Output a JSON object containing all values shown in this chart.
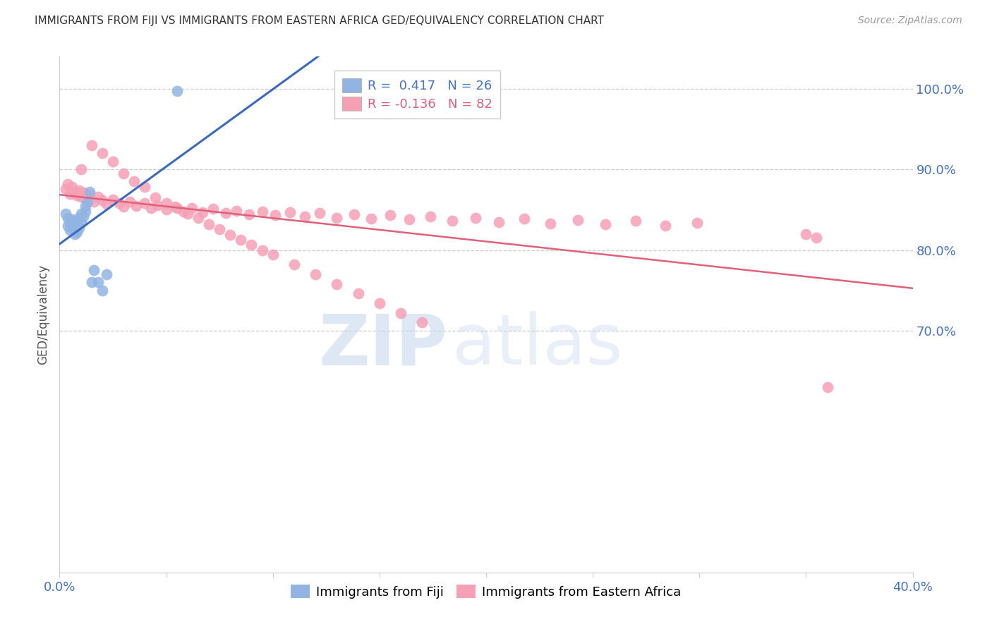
{
  "title": "IMMIGRANTS FROM FIJI VS IMMIGRANTS FROM EASTERN AFRICA GED/EQUIVALENCY CORRELATION CHART",
  "source": "Source: ZipAtlas.com",
  "ylabel": "GED/Equivalency",
  "xlim": [
    0.0,
    0.4
  ],
  "ylim": [
    0.4,
    1.04
  ],
  "x_ticks": [
    0.0,
    0.05,
    0.1,
    0.15,
    0.2,
    0.25,
    0.3,
    0.35,
    0.4
  ],
  "x_tick_labels": [
    "0.0%",
    "",
    "",
    "",
    "",
    "",
    "",
    "",
    "40.0%"
  ],
  "y_ticks_right": [
    1.0,
    0.9,
    0.8,
    0.7
  ],
  "y_tick_labels_right": [
    "100.0%",
    "90.0%",
    "80.0%",
    "70.0%"
  ],
  "fiji_color": "#92b4e3",
  "fiji_color_line": "#3a6abf",
  "ea_color": "#f5a0b5",
  "ea_color_line": "#e0607a",
  "title_color": "#333333",
  "axis_label_color": "#555555",
  "tick_label_color": "#4472c4",
  "right_tick_color": "#4472c4",
  "grid_color": "#cccccc",
  "background_color": "#ffffff",
  "fiji_N": 26,
  "ea_N": 82,
  "fiji_R": 0.417,
  "ea_R": -0.136,
  "fiji_scatter_x": [
    0.003,
    0.004,
    0.004,
    0.005,
    0.005,
    0.006,
    0.006,
    0.007,
    0.007,
    0.008,
    0.008,
    0.009,
    0.009,
    0.01,
    0.01,
    0.011,
    0.012,
    0.012,
    0.013,
    0.014,
    0.015,
    0.016,
    0.018,
    0.02,
    0.022,
    0.055
  ],
  "fiji_scatter_y": [
    0.845,
    0.84,
    0.83,
    0.835,
    0.825,
    0.838,
    0.828,
    0.832,
    0.82,
    0.836,
    0.822,
    0.84,
    0.828,
    0.845,
    0.835,
    0.842,
    0.855,
    0.848,
    0.86,
    0.872,
    0.76,
    0.775,
    0.76,
    0.75,
    0.77,
    0.997
  ],
  "ea_scatter_x": [
    0.003,
    0.004,
    0.005,
    0.006,
    0.007,
    0.008,
    0.009,
    0.01,
    0.011,
    0.012,
    0.014,
    0.016,
    0.018,
    0.02,
    0.022,
    0.025,
    0.028,
    0.03,
    0.033,
    0.036,
    0.04,
    0.043,
    0.046,
    0.05,
    0.054,
    0.058,
    0.062,
    0.067,
    0.072,
    0.078,
    0.083,
    0.089,
    0.095,
    0.101,
    0.108,
    0.115,
    0.122,
    0.13,
    0.138,
    0.146,
    0.155,
    0.164,
    0.174,
    0.184,
    0.195,
    0.206,
    0.218,
    0.23,
    0.243,
    0.256,
    0.27,
    0.284,
    0.299,
    0.01,
    0.015,
    0.02,
    0.025,
    0.03,
    0.035,
    0.04,
    0.045,
    0.05,
    0.055,
    0.06,
    0.065,
    0.07,
    0.075,
    0.08,
    0.085,
    0.09,
    0.095,
    0.1,
    0.11,
    0.12,
    0.13,
    0.14,
    0.15,
    0.16,
    0.17,
    0.35,
    0.355,
    0.36
  ],
  "ea_scatter_y": [
    0.876,
    0.882,
    0.87,
    0.878,
    0.872,
    0.868,
    0.874,
    0.866,
    0.871,
    0.864,
    0.869,
    0.86,
    0.866,
    0.862,
    0.857,
    0.863,
    0.858,
    0.854,
    0.86,
    0.855,
    0.858,
    0.852,
    0.856,
    0.85,
    0.854,
    0.848,
    0.852,
    0.847,
    0.851,
    0.846,
    0.849,
    0.844,
    0.848,
    0.843,
    0.847,
    0.842,
    0.846,
    0.84,
    0.844,
    0.839,
    0.843,
    0.838,
    0.842,
    0.836,
    0.84,
    0.835,
    0.839,
    0.833,
    0.837,
    0.832,
    0.836,
    0.83,
    0.834,
    0.9,
    0.93,
    0.92,
    0.91,
    0.895,
    0.885,
    0.878,
    0.865,
    0.858,
    0.852,
    0.845,
    0.84,
    0.832,
    0.826,
    0.819,
    0.813,
    0.807,
    0.8,
    0.794,
    0.782,
    0.77,
    0.758,
    0.746,
    0.734,
    0.722,
    0.71,
    0.82,
    0.815,
    0.63
  ],
  "watermark_zip": "ZIP",
  "watermark_atlas": "atlas",
  "legend_fiji_label": "R =  0.417   N = 26",
  "legend_ea_label": "R = -0.136   N = 82",
  "legend_bottom_fiji": "Immigrants from Fiji",
  "legend_bottom_ea": "Immigrants from Eastern Africa"
}
